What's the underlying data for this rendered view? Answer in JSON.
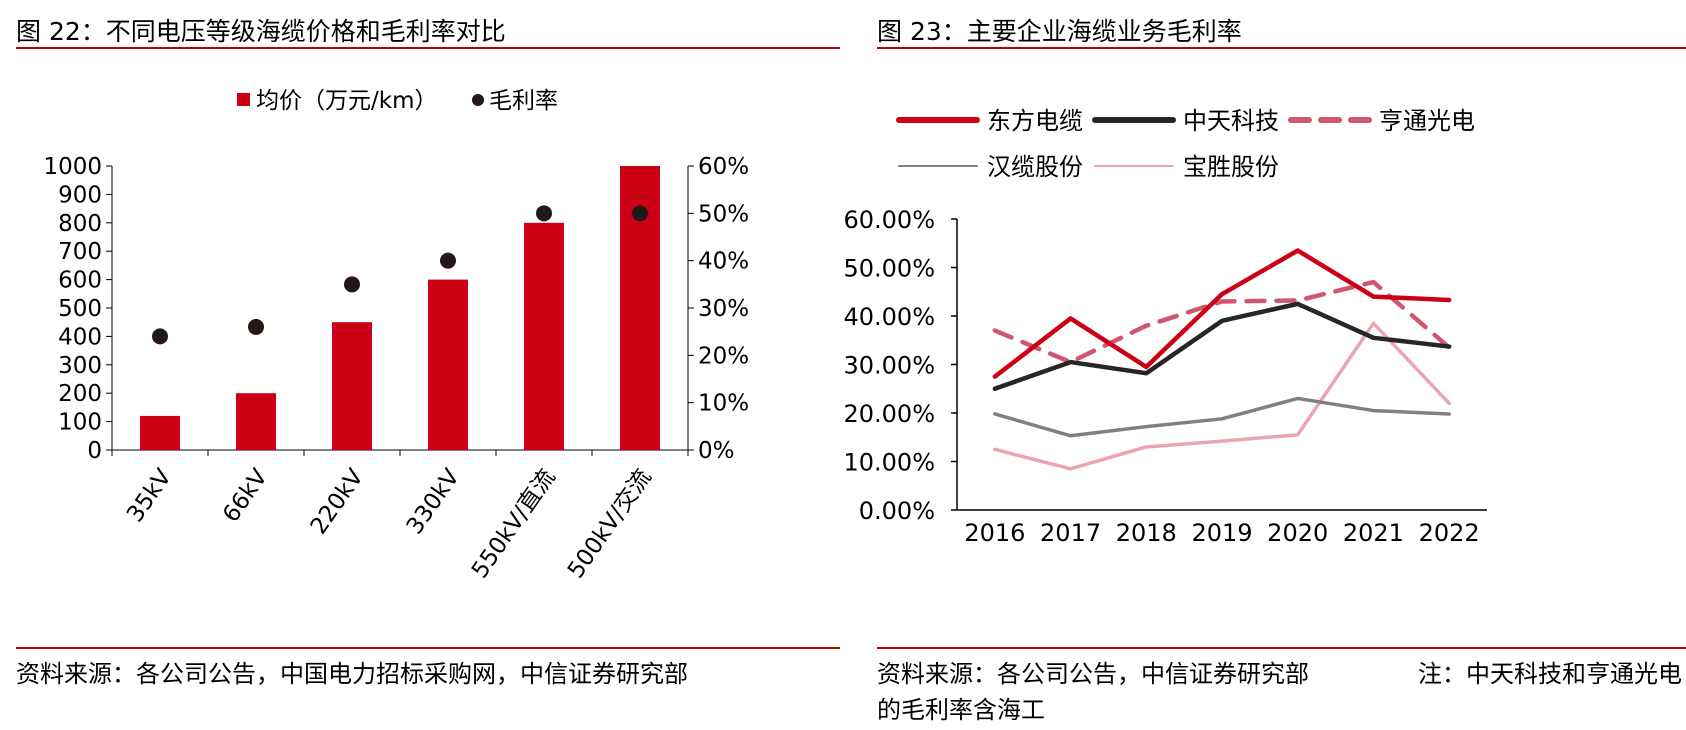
{
  "figures": [
    {
      "title": "图 22：不同电压等级海缆价格和毛利率对比",
      "source": "资料来源：各公司公告，中国电力招标采购网，中信证券研究部"
    },
    {
      "title": "图 23：主要企业海缆业务毛利率",
      "source": "资料来源：各公司公告，中信证券研究部",
      "note_part1": "注：中天科技和亨通光电",
      "note_part2": "的毛利率含海工"
    }
  ],
  "chart_data": [
    {
      "type": "bar",
      "title": "不同电压等级海缆价格和毛利率对比",
      "categories": [
        "35kV",
        "66kV",
        "220kV",
        "330kV",
        "550kV/直流",
        "500kV/交流"
      ],
      "series": [
        {
          "name": "均价（万元/km）",
          "kind": "bar",
          "axis": "left",
          "color": "#cc0014",
          "values": [
            120,
            200,
            450,
            600,
            800,
            1000
          ]
        },
        {
          "name": "毛利率",
          "kind": "scatter",
          "axis": "right",
          "color": "#231815",
          "values": [
            24,
            26,
            35,
            40,
            50,
            50
          ]
        }
      ],
      "y_left": {
        "ticks": [
          "0",
          "100",
          "200",
          "300",
          "400",
          "500",
          "600",
          "700",
          "800",
          "900",
          "1000"
        ],
        "range": [
          0,
          1000
        ]
      },
      "y_right": {
        "ticks": [
          "0%",
          "10%",
          "20%",
          "30%",
          "40%",
          "50%",
          "60%"
        ],
        "range": [
          0,
          60
        ]
      },
      "legend": "top-center"
    },
    {
      "type": "line",
      "title": "主要企业海缆业务毛利率",
      "x": [
        "2016",
        "2017",
        "2018",
        "2019",
        "2020",
        "2021",
        "2022"
      ],
      "series": [
        {
          "name": "东方电缆",
          "color": "#cc0014",
          "dash": "solid",
          "width": "thick",
          "values": [
            27.5,
            39.5,
            29.5,
            44.5,
            53.5,
            44,
            43.3
          ]
        },
        {
          "name": "中天科技",
          "color": "#262626",
          "dash": "solid",
          "width": "thick",
          "values": [
            25,
            30.5,
            28.2,
            39,
            42.5,
            35.5,
            33.7
          ]
        },
        {
          "name": "亨通光电",
          "color": "#d0566f",
          "dash": "dashed",
          "width": "thick",
          "values": [
            37,
            30.5,
            38,
            43,
            43.2,
            47,
            33.5
          ]
        },
        {
          "name": "汉缆股份",
          "color": "#808080",
          "dash": "solid",
          "width": "thin",
          "values": [
            19.8,
            15.3,
            17.2,
            18.8,
            23,
            20.5,
            19.8
          ]
        },
        {
          "name": "宝胜股份",
          "color": "#eda4b1",
          "dash": "solid",
          "width": "thin",
          "values": [
            12.5,
            8.5,
            13,
            14.2,
            15.5,
            38.5,
            22
          ]
        }
      ],
      "y_ticks": [
        "0.00%",
        "10.00%",
        "20.00%",
        "30.00%",
        "40.00%",
        "50.00%",
        "60.00%"
      ],
      "ylim": [
        0,
        60
      ],
      "legend": "top"
    }
  ]
}
